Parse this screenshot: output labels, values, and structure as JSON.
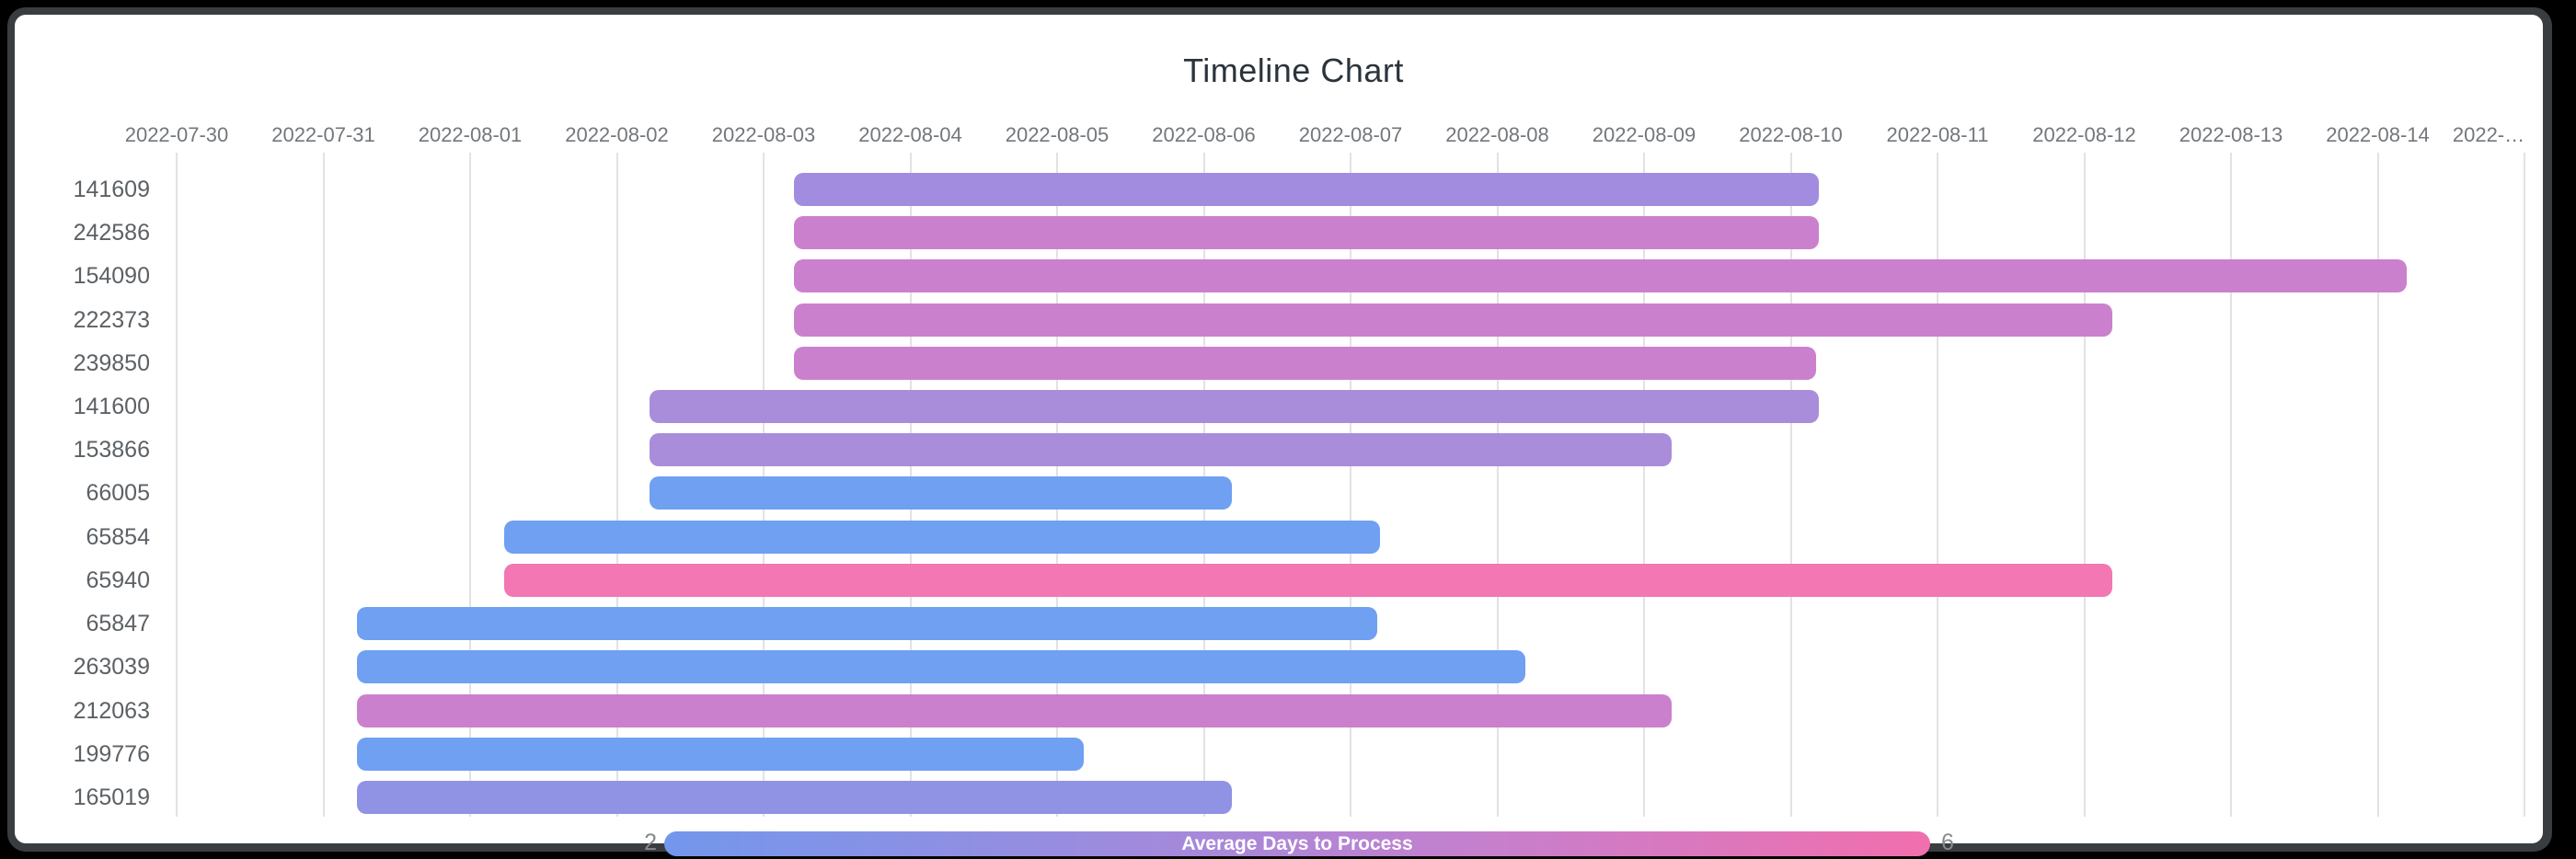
{
  "title": "Timeline Chart",
  "legend": {
    "label": "Average Days to Process",
    "min": "2",
    "max": "6",
    "gradient": [
      "#7297EC",
      "#9A8CDF",
      "#C77FCC",
      "#F16FAD"
    ]
  },
  "chart_data": {
    "type": "bar",
    "subtype": "timeline-gantt",
    "title": "Timeline Chart",
    "x_axis": {
      "start_date": "2022-07-30",
      "tick_labels": [
        "2022-07-30",
        "2022-07-31",
        "2022-08-01",
        "2022-08-02",
        "2022-08-03",
        "2022-08-04",
        "2022-08-05",
        "2022-08-06",
        "2022-08-07",
        "2022-08-08",
        "2022-08-09",
        "2022-08-10",
        "2022-08-11",
        "2022-08-12",
        "2022-08-13",
        "2022-08-14",
        "2022-…"
      ],
      "grid": true
    },
    "colorbar": {
      "label": "Average Days to Process",
      "min": 2,
      "max": 6,
      "position": "bottom"
    },
    "rows": [
      {
        "id": "141609",
        "start": "2022-08-03",
        "end": "2022-08-10",
        "start_offset_days": 4.21,
        "end_offset_days": 11.19,
        "duration_days": 7,
        "color": "#A18CDF",
        "avg_days_to_process": 3.5
      },
      {
        "id": "242586",
        "start": "2022-08-03",
        "end": "2022-08-10",
        "start_offset_days": 4.21,
        "end_offset_days": 11.19,
        "duration_days": 7,
        "color": "#CB80CD",
        "avg_days_to_process": 4.5
      },
      {
        "id": "154090",
        "start": "2022-08-03",
        "end": "2022-08-14",
        "start_offset_days": 4.21,
        "end_offset_days": 15.2,
        "duration_days": 11,
        "color": "#CB80CD",
        "avg_days_to_process": 4.5
      },
      {
        "id": "222373",
        "start": "2022-08-03",
        "end": "2022-08-12",
        "start_offset_days": 4.21,
        "end_offset_days": 13.19,
        "duration_days": 9,
        "color": "#CB80CD",
        "avg_days_to_process": 4.5
      },
      {
        "id": "239850",
        "start": "2022-08-03",
        "end": "2022-08-10",
        "start_offset_days": 4.21,
        "end_offset_days": 11.17,
        "duration_days": 7,
        "color": "#CB80CD",
        "avg_days_to_process": 4.5
      },
      {
        "id": "141600",
        "start": "2022-08-02",
        "end": "2022-08-10",
        "start_offset_days": 3.22,
        "end_offset_days": 11.19,
        "duration_days": 8,
        "color": "#A98DDA",
        "avg_days_to_process": 3.6
      },
      {
        "id": "153866",
        "start": "2022-08-02",
        "end": "2022-08-09",
        "start_offset_days": 3.22,
        "end_offset_days": 10.19,
        "duration_days": 7,
        "color": "#A98DDA",
        "avg_days_to_process": 3.6
      },
      {
        "id": "66005",
        "start": "2022-08-02",
        "end": "2022-08-06",
        "start_offset_days": 3.22,
        "end_offset_days": 7.19,
        "duration_days": 4,
        "color": "#6FA0F1",
        "avg_days_to_process": 2
      },
      {
        "id": "65854",
        "start": "2022-08-01",
        "end": "2022-08-07",
        "start_offset_days": 2.23,
        "end_offset_days": 8.2,
        "duration_days": 6,
        "color": "#6FA0F1",
        "avg_days_to_process": 2
      },
      {
        "id": "65940",
        "start": "2022-08-01",
        "end": "2022-08-12",
        "start_offset_days": 2.23,
        "end_offset_days": 13.19,
        "duration_days": 11,
        "color": "#F277B3",
        "avg_days_to_process": 6
      },
      {
        "id": "65847",
        "start": "2022-07-31",
        "end": "2022-08-07",
        "start_offset_days": 1.23,
        "end_offset_days": 8.18,
        "duration_days": 7,
        "color": "#6FA0F1",
        "avg_days_to_process": 2
      },
      {
        "id": "263039",
        "start": "2022-07-31",
        "end": "2022-08-08",
        "start_offset_days": 1.23,
        "end_offset_days": 9.19,
        "duration_days": 8,
        "color": "#6FA0F1",
        "avg_days_to_process": 2
      },
      {
        "id": "212063",
        "start": "2022-07-31",
        "end": "2022-08-09",
        "start_offset_days": 1.23,
        "end_offset_days": 10.19,
        "duration_days": 9,
        "color": "#CB80CD",
        "avg_days_to_process": 4.5
      },
      {
        "id": "199776",
        "start": "2022-07-31",
        "end": "2022-08-05",
        "start_offset_days": 1.23,
        "end_offset_days": 6.18,
        "duration_days": 5,
        "color": "#6FA0F1",
        "avg_days_to_process": 2
      },
      {
        "id": "165019",
        "start": "2022-07-31",
        "end": "2022-08-06",
        "start_offset_days": 1.23,
        "end_offset_days": 7.19,
        "duration_days": 6,
        "color": "#9092E3",
        "avg_days_to_process": 3
      }
    ]
  }
}
